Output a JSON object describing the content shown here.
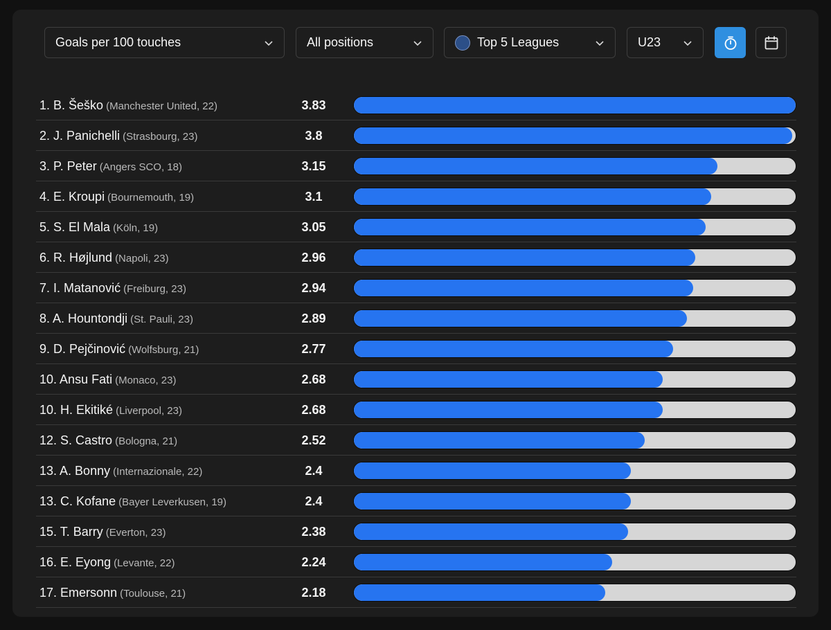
{
  "filters": {
    "metric": "Goals per 100 touches",
    "position": "All positions",
    "competition": "Top 5 Leagues",
    "age": "U23"
  },
  "icons": {
    "chevron": "chevron-down-icon",
    "competition": "globe-icon",
    "timer": "stopwatch-icon",
    "calendar": "calendar-icon"
  },
  "colors": {
    "bar_fill": "#2674f0",
    "bar_track": "#d6d6d6",
    "active_button": "#2f8fe0"
  },
  "bar_max": 3.83,
  "rows": [
    {
      "rank": "1.",
      "name": "B. Šeško",
      "meta": "(Manchester United, 22)",
      "value": "3.83",
      "num": 3.83
    },
    {
      "rank": "2.",
      "name": "J. Panichelli",
      "meta": "(Strasbourg, 23)",
      "value": "3.8",
      "num": 3.8
    },
    {
      "rank": "3.",
      "name": "P. Peter",
      "meta": "(Angers SCO, 18)",
      "value": "3.15",
      "num": 3.15
    },
    {
      "rank": "4.",
      "name": "E. Kroupi",
      "meta": "(Bournemouth, 19)",
      "value": "3.1",
      "num": 3.1
    },
    {
      "rank": "5.",
      "name": "S. El Mala",
      "meta": "(Köln, 19)",
      "value": "3.05",
      "num": 3.05
    },
    {
      "rank": "6.",
      "name": "R. Højlund",
      "meta": "(Napoli, 23)",
      "value": "2.96",
      "num": 2.96
    },
    {
      "rank": "7.",
      "name": "I. Matanović",
      "meta": "(Freiburg, 23)",
      "value": "2.94",
      "num": 2.94
    },
    {
      "rank": "8.",
      "name": "A. Hountondji",
      "meta": "(St. Pauli, 23)",
      "value": "2.89",
      "num": 2.89
    },
    {
      "rank": "9.",
      "name": "D. Pejčinović",
      "meta": "(Wolfsburg, 21)",
      "value": "2.77",
      "num": 2.77
    },
    {
      "rank": "10.",
      "name": "Ansu Fati",
      "meta": "(Monaco, 23)",
      "value": "2.68",
      "num": 2.68
    },
    {
      "rank": "10.",
      "name": "H. Ekitiké",
      "meta": "(Liverpool, 23)",
      "value": "2.68",
      "num": 2.68
    },
    {
      "rank": "12.",
      "name": "S. Castro",
      "meta": "(Bologna, 21)",
      "value": "2.52",
      "num": 2.52
    },
    {
      "rank": "13.",
      "name": "A. Bonny",
      "meta": "(Internazionale, 22)",
      "value": "2.4",
      "num": 2.4
    },
    {
      "rank": "13.",
      "name": "C. Kofane",
      "meta": "(Bayer Leverkusen, 19)",
      "value": "2.4",
      "num": 2.4
    },
    {
      "rank": "15.",
      "name": "T. Barry",
      "meta": "(Everton, 23)",
      "value": "2.38",
      "num": 2.38
    },
    {
      "rank": "16.",
      "name": "E. Eyong",
      "meta": "(Levante, 22)",
      "value": "2.24",
      "num": 2.24
    },
    {
      "rank": "17.",
      "name": "Emersonn",
      "meta": "(Toulouse, 21)",
      "value": "2.18",
      "num": 2.18
    }
  ]
}
